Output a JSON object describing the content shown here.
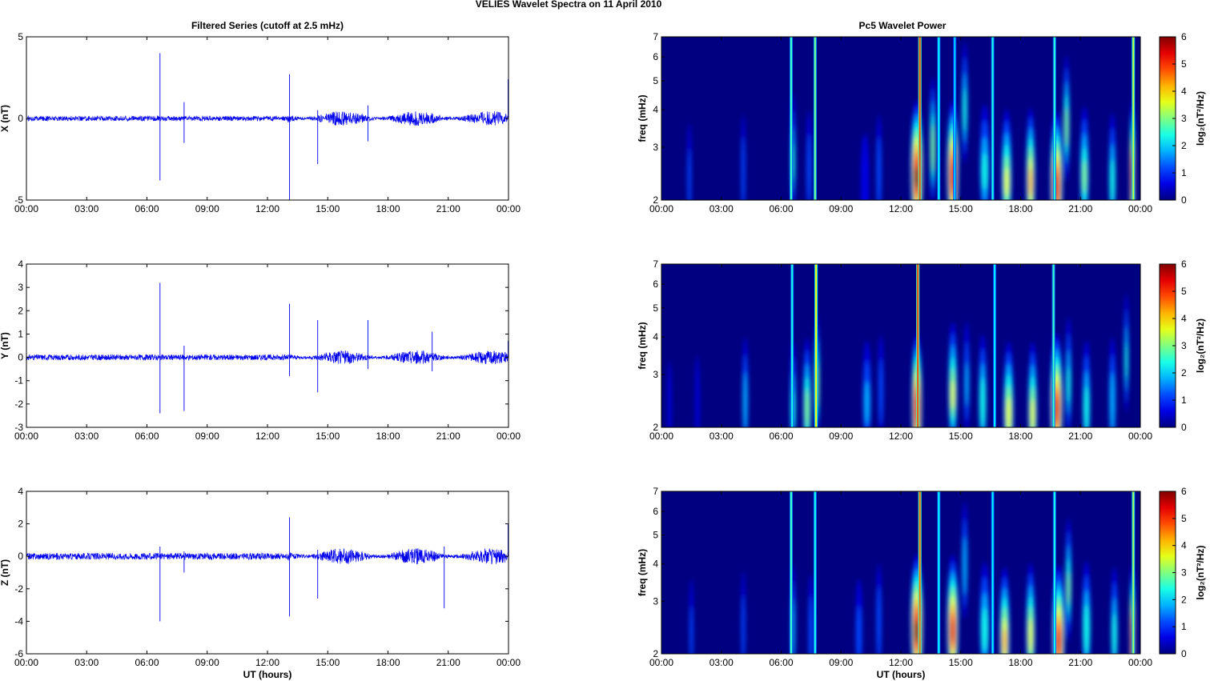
{
  "figure": {
    "suptitle": "VELIES Wavelet Spectra on 11 April    2010",
    "left_title": "Filtered Series (cutoff at 2.5 mHz)",
    "right_title": "Pc5 Wavelet Power",
    "xlabel": "UT (hours)"
  },
  "chart_data": [
    {
      "type": "line",
      "ylabel": "X (nT)",
      "xlabel": "",
      "x_ticks": [
        "00:00",
        "03:00",
        "06:00",
        "09:00",
        "12:00",
        "15:00",
        "18:00",
        "21:00",
        "00:00"
      ],
      "xlim_hours": [
        0,
        24
      ],
      "ylim": [
        -5,
        5
      ],
      "y_ticks": [
        -5,
        0,
        5
      ],
      "color": "#0000ee",
      "background_amplitude_nT": 0.15,
      "active_after_hour": 13.0,
      "active_amplitude_nT": 0.45,
      "spikes": [
        {
          "hour": 6.65,
          "up": 4.0,
          "down": -3.8
        },
        {
          "hour": 7.85,
          "up": 1.0,
          "down": -1.5
        },
        {
          "hour": 13.1,
          "up": 2.7,
          "down": -5.0
        },
        {
          "hour": 14.5,
          "up": 0.5,
          "down": -2.8
        },
        {
          "hour": 17.0,
          "up": 0.8,
          "down": -1.4
        },
        {
          "hour": 24.0,
          "up": 2.4,
          "down": 0
        }
      ]
    },
    {
      "type": "line",
      "ylabel": "Y (nT)",
      "xlabel": "",
      "x_ticks": [
        "00:00",
        "03:00",
        "06:00",
        "09:00",
        "12:00",
        "15:00",
        "18:00",
        "21:00",
        "00:00"
      ],
      "xlim_hours": [
        0,
        24
      ],
      "ylim": [
        -3,
        4
      ],
      "y_ticks": [
        -3,
        -2,
        -1,
        0,
        1,
        2,
        3,
        4
      ],
      "color": "#0000ee",
      "background_amplitude_nT": 0.12,
      "active_after_hour": 13.0,
      "active_amplitude_nT": 0.3,
      "spikes": [
        {
          "hour": 6.65,
          "up": 3.2,
          "down": -2.4
        },
        {
          "hour": 7.85,
          "up": 0.5,
          "down": -2.3
        },
        {
          "hour": 13.1,
          "up": 2.3,
          "down": -0.8
        },
        {
          "hour": 14.5,
          "up": 1.6,
          "down": -1.5
        },
        {
          "hour": 17.0,
          "up": 1.6,
          "down": -0.5
        },
        {
          "hour": 20.2,
          "up": 1.1,
          "down": -0.6
        },
        {
          "hour": 24.0,
          "up": 0.7,
          "down": 0
        }
      ]
    },
    {
      "type": "line",
      "ylabel": "Z (nT)",
      "xlabel": "UT (hours)",
      "x_ticks": [
        "00:00",
        "03:00",
        "06:00",
        "09:00",
        "12:00",
        "15:00",
        "18:00",
        "21:00",
        "00:00"
      ],
      "xlim_hours": [
        0,
        24
      ],
      "ylim": [
        -6,
        4
      ],
      "y_ticks": [
        -6,
        -4,
        -2,
        0,
        2,
        4
      ],
      "color": "#0000ee",
      "background_amplitude_nT": 0.2,
      "active_after_hour": 13.0,
      "active_amplitude_nT": 0.5,
      "spikes": [
        {
          "hour": 6.65,
          "up": 0.6,
          "down": -4.0
        },
        {
          "hour": 7.85,
          "up": 0.3,
          "down": -1.0
        },
        {
          "hour": 13.1,
          "up": 2.4,
          "down": -3.7
        },
        {
          "hour": 14.5,
          "up": 0.4,
          "down": -2.6
        },
        {
          "hour": 20.8,
          "up": 0.6,
          "down": -3.2
        },
        {
          "hour": 24.0,
          "up": 2.0,
          "down": 0
        }
      ]
    },
    {
      "type": "heatmap",
      "ylabel": "freq (mHz)",
      "xlabel": "",
      "y_scale": "log",
      "ylim_mHz": [
        2,
        7
      ],
      "y_ticks": [
        2,
        3,
        4,
        5,
        6,
        7
      ],
      "x_ticks": [
        "00:00",
        "03:00",
        "06:00",
        "09:00",
        "12:00",
        "15:00",
        "18:00",
        "21:00",
        "00:00"
      ],
      "xlim_hours": [
        0,
        24
      ],
      "colorbar": {
        "label": "log₂(nT²/Hz)",
        "range": [
          0,
          6
        ],
        "ticks": [
          0,
          1,
          2,
          3,
          4,
          5,
          6
        ],
        "colormap": "jet"
      },
      "blobs": [
        {
          "hour": 1.4,
          "freq_mHz": 2.5,
          "power": 1.3,
          "width_h": 0.12
        },
        {
          "hour": 4.1,
          "freq_mHz": 2.6,
          "power": 1.6,
          "width_h": 0.1
        },
        {
          "hour": 6.6,
          "freq_mHz": 2.9,
          "power": 2.4,
          "width_h": 0.12
        },
        {
          "hour": 7.4,
          "freq_mHz": 2.7,
          "power": 1.5,
          "width_h": 0.15
        },
        {
          "hour": 10.2,
          "freq_mHz": 2.4,
          "power": 1.0,
          "width_h": 0.25
        },
        {
          "hour": 10.9,
          "freq_mHz": 2.6,
          "power": 1.6,
          "width_h": 0.15
        },
        {
          "hour": 12.8,
          "freq_mHz": 2.6,
          "power": 6.0,
          "width_h": 0.3
        },
        {
          "hour": 13.6,
          "freq_mHz": 3.2,
          "power": 3.5,
          "width_h": 0.15
        },
        {
          "hour": 14.6,
          "freq_mHz": 2.6,
          "power": 5.8,
          "width_h": 0.28
        },
        {
          "hour": 15.2,
          "freq_mHz": 4.3,
          "power": 2.6,
          "width_h": 0.15
        },
        {
          "hour": 16.2,
          "freq_mHz": 2.7,
          "power": 2.4,
          "width_h": 0.25
        },
        {
          "hour": 17.3,
          "freq_mHz": 2.5,
          "power": 3.6,
          "width_h": 0.25
        },
        {
          "hour": 18.5,
          "freq_mHz": 2.5,
          "power": 4.3,
          "width_h": 0.22
        },
        {
          "hour": 19.8,
          "freq_mHz": 2.4,
          "power": 5.6,
          "width_h": 0.3
        },
        {
          "hour": 20.3,
          "freq_mHz": 3.8,
          "power": 3.2,
          "width_h": 0.15
        },
        {
          "hour": 21.2,
          "freq_mHz": 2.6,
          "power": 3.0,
          "width_h": 0.22
        },
        {
          "hour": 22.6,
          "freq_mHz": 2.5,
          "power": 2.6,
          "width_h": 0.18
        },
        {
          "hour": 23.6,
          "freq_mHz": 2.6,
          "power": 5.6,
          "width_h": 0.12
        }
      ],
      "streaks": [
        {
          "hour": 6.5,
          "power": 2.6
        },
        {
          "hour": 7.7,
          "power": 2.9
        },
        {
          "hour": 12.95,
          "power": 4.8
        },
        {
          "hour": 13.9,
          "power": 2.3
        },
        {
          "hour": 14.7,
          "power": 2.0
        },
        {
          "hour": 16.6,
          "power": 2.4
        },
        {
          "hour": 19.7,
          "power": 2.5
        },
        {
          "hour": 23.65,
          "power": 3.4
        }
      ]
    },
    {
      "type": "heatmap",
      "ylabel": "freq (mHz)",
      "xlabel": "",
      "y_scale": "log",
      "ylim_mHz": [
        2,
        7
      ],
      "y_ticks": [
        2,
        3,
        4,
        5,
        6,
        7
      ],
      "x_ticks": [
        "00:00",
        "03:00",
        "06:00",
        "09:00",
        "12:00",
        "15:00",
        "18:00",
        "21:00",
        "00:00"
      ],
      "xlim_hours": [
        0,
        24
      ],
      "colorbar": {
        "label": "log₂(nT²/Hz)",
        "range": [
          0,
          6
        ],
        "ticks": [
          0,
          1,
          2,
          3,
          4,
          5,
          6
        ],
        "colormap": "jet"
      },
      "blobs": [
        {
          "hour": 0.4,
          "freq_mHz": 2.4,
          "power": 1.0,
          "width_h": 0.1
        },
        {
          "hour": 1.8,
          "freq_mHz": 2.5,
          "power": 1.0,
          "width_h": 0.1
        },
        {
          "hour": 4.2,
          "freq_mHz": 2.6,
          "power": 2.2,
          "width_h": 0.15
        },
        {
          "hour": 6.6,
          "freq_mHz": 2.5,
          "power": 2.4,
          "width_h": 0.15
        },
        {
          "hour": 7.3,
          "freq_mHz": 2.5,
          "power": 3.2,
          "width_h": 0.2
        },
        {
          "hour": 7.8,
          "freq_mHz": 3.0,
          "power": 3.3,
          "width_h": 0.12
        },
        {
          "hour": 10.3,
          "freq_mHz": 2.6,
          "power": 1.8,
          "width_h": 0.22
        },
        {
          "hour": 11.0,
          "freq_mHz": 2.8,
          "power": 1.4,
          "width_h": 0.15
        },
        {
          "hour": 12.8,
          "freq_mHz": 2.5,
          "power": 5.8,
          "width_h": 0.25
        },
        {
          "hour": 14.6,
          "freq_mHz": 2.8,
          "power": 3.6,
          "width_h": 0.22
        },
        {
          "hour": 15.3,
          "freq_mHz": 3.0,
          "power": 1.8,
          "width_h": 0.15
        },
        {
          "hour": 16.1,
          "freq_mHz": 2.6,
          "power": 2.8,
          "width_h": 0.2
        },
        {
          "hour": 17.4,
          "freq_mHz": 2.4,
          "power": 3.8,
          "width_h": 0.25
        },
        {
          "hour": 18.6,
          "freq_mHz": 2.4,
          "power": 3.7,
          "width_h": 0.22
        },
        {
          "hour": 19.8,
          "freq_mHz": 2.5,
          "power": 5.5,
          "width_h": 0.3
        },
        {
          "hour": 20.4,
          "freq_mHz": 3.0,
          "power": 2.4,
          "width_h": 0.15
        },
        {
          "hour": 21.3,
          "freq_mHz": 2.5,
          "power": 2.6,
          "width_h": 0.2
        },
        {
          "hour": 22.6,
          "freq_mHz": 2.6,
          "power": 2.2,
          "width_h": 0.18
        },
        {
          "hour": 23.3,
          "freq_mHz": 3.6,
          "power": 2.4,
          "width_h": 0.12
        }
      ],
      "streaks": [
        {
          "hour": 6.55,
          "power": 2.4
        },
        {
          "hour": 7.75,
          "power": 3.8
        },
        {
          "hour": 12.85,
          "power": 4.8
        },
        {
          "hour": 16.7,
          "power": 2.2
        },
        {
          "hour": 19.65,
          "power": 2.6
        }
      ]
    },
    {
      "type": "heatmap",
      "ylabel": "freq (mHz)",
      "xlabel": "UT (hours)",
      "y_scale": "log",
      "ylim_mHz": [
        2,
        7
      ],
      "y_ticks": [
        2,
        3,
        4,
        5,
        6,
        7
      ],
      "x_ticks": [
        "00:00",
        "03:00",
        "06:00",
        "09:00",
        "12:00",
        "15:00",
        "18:00",
        "21:00",
        "00:00"
      ],
      "xlim_hours": [
        0,
        24
      ],
      "colorbar": {
        "label": "log₂(nT²/Hz)",
        "range": [
          0,
          6
        ],
        "ticks": [
          0,
          1,
          2,
          3,
          4,
          5,
          6
        ],
        "colormap": "jet"
      },
      "blobs": [
        {
          "hour": 1.5,
          "freq_mHz": 2.5,
          "power": 1.2,
          "width_h": 0.12
        },
        {
          "hour": 4.1,
          "freq_mHz": 2.6,
          "power": 1.4,
          "width_h": 0.1
        },
        {
          "hour": 6.6,
          "freq_mHz": 2.6,
          "power": 2.2,
          "width_h": 0.12
        },
        {
          "hour": 7.5,
          "freq_mHz": 2.5,
          "power": 1.6,
          "width_h": 0.15
        },
        {
          "hour": 9.9,
          "freq_mHz": 2.5,
          "power": 1.2,
          "width_h": 0.2
        },
        {
          "hour": 10.9,
          "freq_mHz": 2.7,
          "power": 1.6,
          "width_h": 0.15
        },
        {
          "hour": 12.8,
          "freq_mHz": 2.6,
          "power": 6.0,
          "width_h": 0.3
        },
        {
          "hour": 14.6,
          "freq_mHz": 2.6,
          "power": 5.4,
          "width_h": 0.28
        },
        {
          "hour": 15.2,
          "freq_mHz": 4.2,
          "power": 2.2,
          "width_h": 0.15
        },
        {
          "hour": 16.2,
          "freq_mHz": 2.6,
          "power": 2.6,
          "width_h": 0.25
        },
        {
          "hour": 17.2,
          "freq_mHz": 2.4,
          "power": 4.2,
          "width_h": 0.25
        },
        {
          "hour": 18.5,
          "freq_mHz": 2.5,
          "power": 3.8,
          "width_h": 0.22
        },
        {
          "hour": 19.9,
          "freq_mHz": 2.4,
          "power": 5.4,
          "width_h": 0.3
        },
        {
          "hour": 20.4,
          "freq_mHz": 3.6,
          "power": 3.0,
          "width_h": 0.15
        },
        {
          "hour": 21.3,
          "freq_mHz": 2.6,
          "power": 2.8,
          "width_h": 0.22
        },
        {
          "hour": 22.7,
          "freq_mHz": 2.5,
          "power": 2.6,
          "width_h": 0.18
        },
        {
          "hour": 23.6,
          "freq_mHz": 2.4,
          "power": 5.8,
          "width_h": 0.12
        }
      ],
      "streaks": [
        {
          "hour": 6.5,
          "power": 2.6
        },
        {
          "hour": 7.7,
          "power": 2.4
        },
        {
          "hour": 12.95,
          "power": 4.6
        },
        {
          "hour": 13.9,
          "power": 2.3
        },
        {
          "hour": 16.6,
          "power": 2.2
        },
        {
          "hour": 19.7,
          "power": 2.4
        },
        {
          "hour": 23.65,
          "power": 3.2
        }
      ]
    }
  ]
}
